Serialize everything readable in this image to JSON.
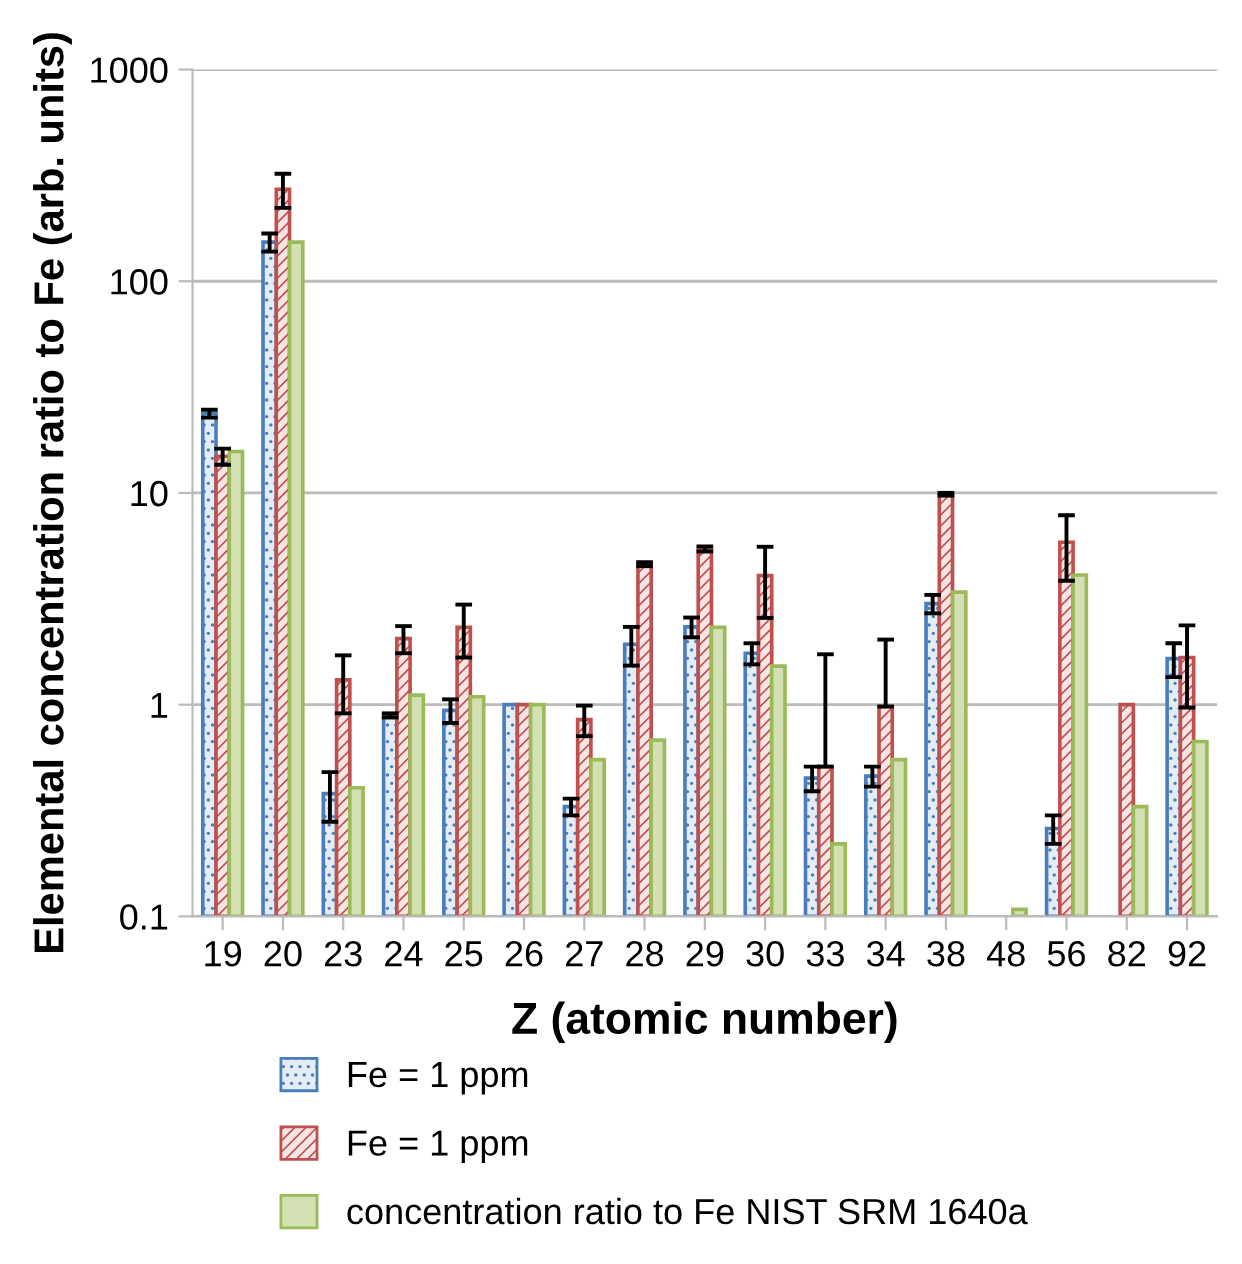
{
  "chart_data": {
    "type": "bar",
    "xlabel": "Z (atomic number)",
    "ylabel": "Elemental concentration ratio to Fe (arb. units)",
    "categories": [
      "19",
      "20",
      "23",
      "24",
      "25",
      "26",
      "27",
      "28",
      "29",
      "30",
      "33",
      "34",
      "38",
      "48",
      "56",
      "82",
      "92"
    ],
    "log": "y",
    "ylim": [
      0.1,
      1000
    ],
    "yticks": [
      0.1,
      1,
      10,
      100,
      1000
    ],
    "grid": "y",
    "legend": "bottom",
    "series": [
      {
        "name": "Fe = 1 ppm",
        "color": "#4a7ebb",
        "values": [
          23.7,
          153,
          0.38,
          0.89,
          0.94,
          1,
          0.33,
          1.93,
          2.33,
          1.75,
          0.45,
          0.46,
          3.0,
          null,
          0.26,
          null,
          1.65
        ],
        "errors": [
          1,
          15,
          0.1,
          0.02,
          0.12,
          null,
          0.03,
          0.4,
          0.25,
          0.2,
          0.06,
          0.05,
          0.3,
          null,
          0.04,
          null,
          0.3
        ]
      },
      {
        "name": "Fe = 1 ppm",
        "color": "#c0504d",
        "values": [
          14.9,
          272,
          1.31,
          2.05,
          2.32,
          1,
          0.85,
          4.61,
          5.44,
          4.07,
          0.51,
          0.98,
          9.86,
          null,
          5.85,
          1.0,
          1.67
        ],
        "errors": [
          1.3,
          50,
          0.4,
          0.3,
          0.65,
          null,
          0.14,
          0.1,
          0.15,
          1.5,
          [
            0.51,
            1.73
          ],
          [
            0.98,
            2.03
          ],
          0.15,
          null,
          2,
          null,
          0.7
        ]
      },
      {
        "name": "concentration ratio to Fe NIST SRM 1640a",
        "color": "#9bbb59",
        "values": [
          15.7,
          153,
          0.405,
          1.11,
          1.09,
          1,
          0.55,
          0.68,
          2.32,
          1.52,
          0.22,
          0.55,
          3.4,
          0.108,
          4.1,
          0.33,
          0.67
        ]
      }
    ]
  }
}
